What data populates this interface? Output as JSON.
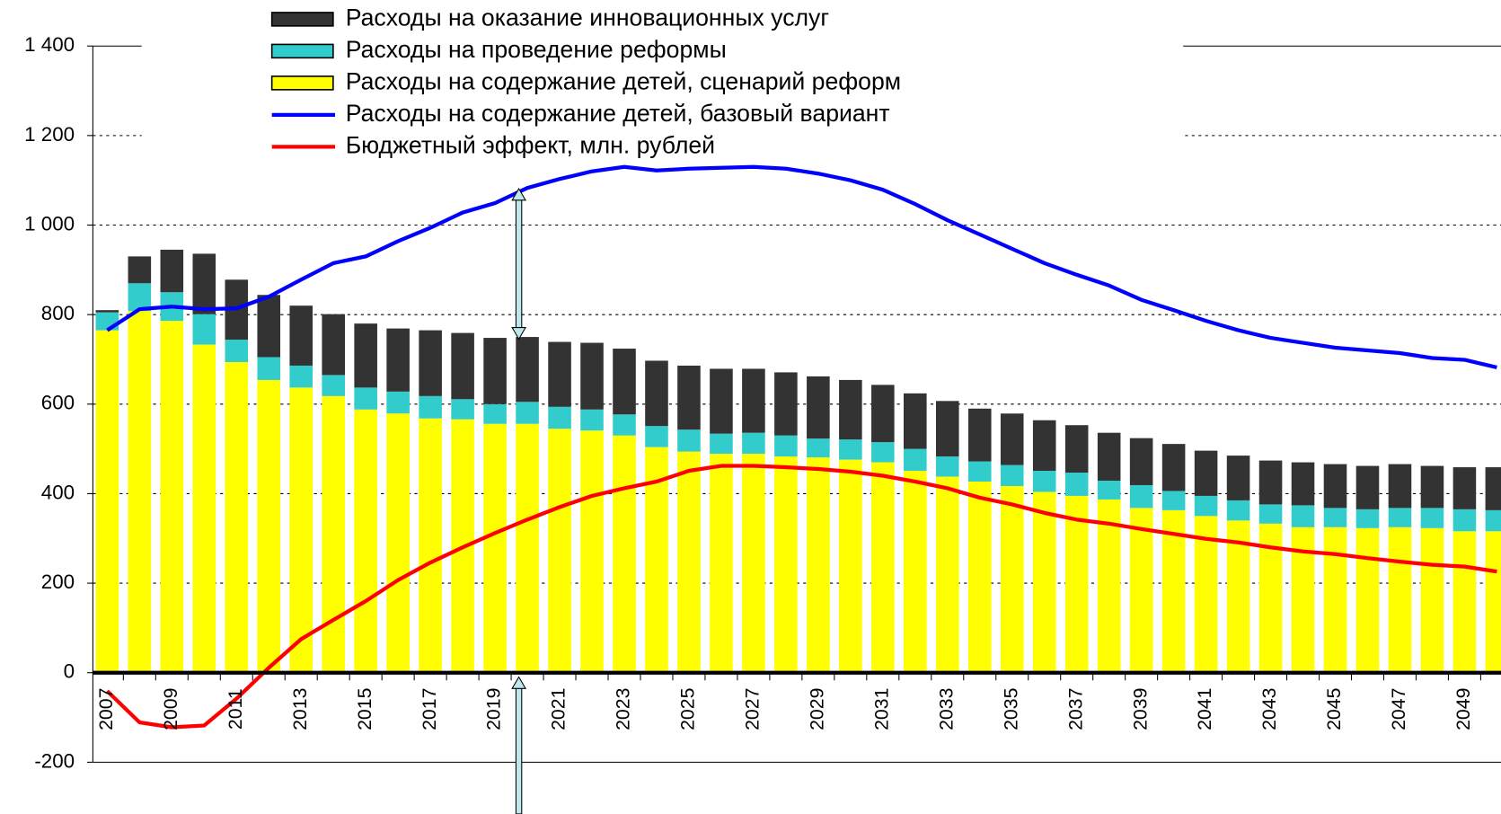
{
  "chart_data": {
    "type": "bar",
    "stacked": true,
    "categories": [
      "2007",
      null,
      "2009",
      null,
      "2011",
      null,
      "2013",
      null,
      "2015",
      null,
      "2017",
      null,
      "2019",
      null,
      "2021",
      null,
      "2023",
      null,
      "2025",
      null,
      "2027",
      null,
      "2029",
      null,
      "2031",
      null,
      "2033",
      null,
      "2035",
      null,
      "2037",
      null,
      "2039",
      null,
      "2041",
      null,
      "2043",
      null,
      "2045",
      null,
      "2047",
      null,
      "2049",
      null
    ],
    "series": [
      {
        "name": "Расходы на оказание инновационных услуг",
        "type": "bar",
        "color": "#333333",
        "values": [
          5,
          60,
          95,
          135,
          134,
          139,
          134,
          136,
          143,
          141,
          147,
          148,
          148,
          145,
          145,
          149,
          147,
          146,
          143,
          145,
          143,
          141,
          139,
          133,
          128,
          124,
          124,
          118,
          115,
          113,
          106,
          107,
          105,
          105,
          101,
          100,
          98,
          96,
          98,
          97,
          98,
          94,
          94,
          96
        ]
      },
      {
        "name": "Расходы на проведение реформы",
        "type": "bar",
        "color": "#33cccc",
        "values": [
          40,
          62,
          64,
          68,
          50,
          51,
          49,
          47,
          49,
          49,
          50,
          45,
          44,
          49,
          49,
          47,
          47,
          47,
          49,
          45,
          47,
          47,
          42,
          45,
          45,
          49,
          45,
          45,
          47,
          47,
          52,
          42,
          51,
          43,
          45,
          45,
          43,
          49,
          43,
          42,
          43,
          45,
          49,
          47
        ]
      },
      {
        "name": "Расходы на содержание детей, сценарий реформ",
        "type": "bar",
        "color": "#ffff00",
        "values": [
          765,
          808,
          786,
          733,
          694,
          654,
          637,
          618,
          588,
          579,
          568,
          566,
          556,
          556,
          545,
          541,
          530,
          504,
          494,
          489,
          489,
          483,
          481,
          476,
          470,
          451,
          438,
          427,
          417,
          404,
          395,
          387,
          368,
          363,
          350,
          340,
          333,
          325,
          325,
          323,
          325,
          323,
          316,
          316
        ]
      },
      {
        "name": "Расходы на содержание детей, базовый вариант",
        "type": "line",
        "color": "#0000ff",
        "values": [
          765,
          812,
          818,
          812,
          814,
          840,
          878,
          915,
          930,
          964,
          994,
          1028,
          1049,
          1083,
          1103,
          1120,
          1130,
          1122,
          1126,
          1128,
          1130,
          1126,
          1115,
          1100,
          1079,
          1047,
          1011,
          979,
          947,
          915,
          889,
          865,
          833,
          810,
          786,
          765,
          748,
          737,
          726,
          720,
          714,
          703,
          699,
          682
        ]
      },
      {
        "name": "Бюджетный эффект, млн. рублей",
        "type": "line",
        "color": "#ff0000",
        "values": [
          -41,
          -111,
          -122,
          -118,
          -58,
          11,
          75,
          118,
          160,
          207,
          246,
          280,
          312,
          342,
          370,
          395,
          412,
          427,
          451,
          462,
          462,
          459,
          455,
          449,
          440,
          427,
          412,
          391,
          376,
          357,
          342,
          333,
          321,
          310,
          299,
          291,
          280,
          271,
          265,
          256,
          248,
          241,
          237,
          226
        ]
      }
    ],
    "ylim": [
      -200,
      1400
    ],
    "yticks": [
      -200,
      0,
      200,
      400,
      600,
      800,
      {
        "value": 1000,
        "label": "1 000"
      },
      {
        "value": 1200,
        "label": "1 200"
      },
      {
        "value": 1400,
        "label": "1 400"
      }
    ],
    "grid": true,
    "legend": "top"
  }
}
